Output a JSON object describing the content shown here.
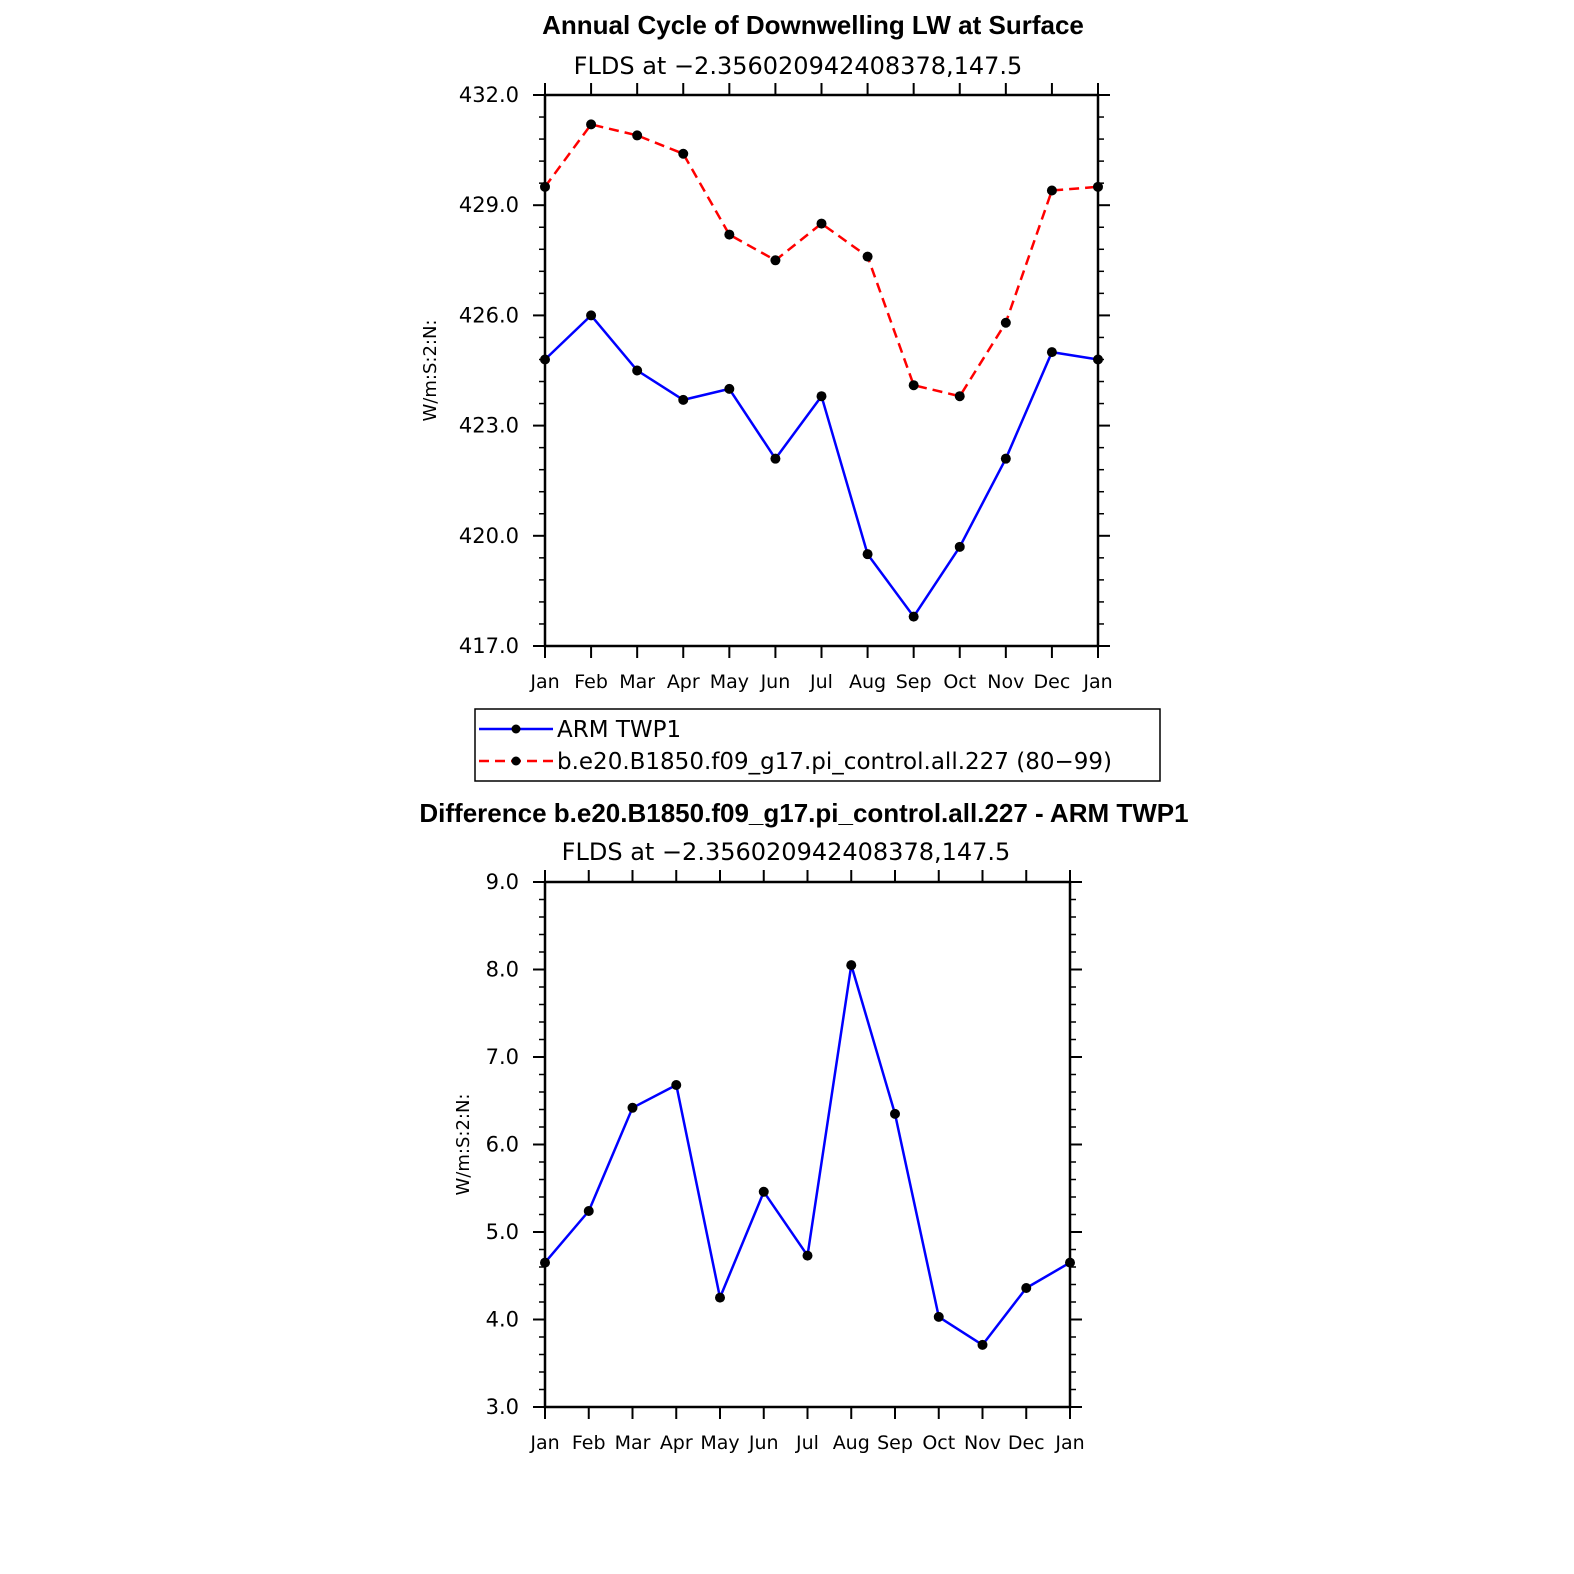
{
  "chart_data": [
    {
      "type": "line",
      "title": "Annual Cycle of Downwelling LW at Surface",
      "subtitle": "FLDS at −2.356020942408378,147.5",
      "ylabel": "W/m:S:2:N:",
      "ylim": [
        417.0,
        432.0
      ],
      "yticks": [
        "417.0",
        "420.0",
        "423.0",
        "426.0",
        "429.0",
        "432.0"
      ],
      "categories": [
        "Jan",
        "Feb",
        "Mar",
        "Apr",
        "May",
        "Jun",
        "Jul",
        "Aug",
        "Sep",
        "Oct",
        "Nov",
        "Dec",
        "Jan"
      ],
      "legend": {
        "placement": "bottom"
      },
      "series": [
        {
          "name": "ARM TWP1",
          "color": "#0000ff",
          "style": "solid",
          "values": [
            424.8,
            426.0,
            424.5,
            423.7,
            424.0,
            422.1,
            423.8,
            419.5,
            417.8,
            419.7,
            422.1,
            425.0,
            424.8
          ]
        },
        {
          "name": "b.e20.B1850.f09_g17.pi_control.all.227 (80−99)",
          "color": "#ff0000",
          "style": "dashed",
          "values": [
            429.5,
            431.2,
            430.9,
            430.4,
            428.2,
            427.5,
            428.5,
            427.6,
            424.1,
            423.8,
            425.8,
            429.4,
            429.5
          ]
        }
      ]
    },
    {
      "type": "line",
      "title": "Difference b.e20.B1850.f09_g17.pi_control.all.227 - ARM TWP1",
      "subtitle": "FLDS at −2.356020942408378,147.5",
      "ylabel": "W/m:S:2:N:",
      "ylim": [
        3.0,
        9.0
      ],
      "yticks": [
        "3.0",
        "4.0",
        "5.0",
        "6.0",
        "7.0",
        "8.0",
        "9.0"
      ],
      "categories": [
        "Jan",
        "Feb",
        "Mar",
        "Apr",
        "May",
        "Jun",
        "Jul",
        "Aug",
        "Sep",
        "Oct",
        "Nov",
        "Dec",
        "Jan"
      ],
      "series": [
        {
          "color": "#0000ff",
          "style": "solid",
          "values": [
            4.65,
            5.24,
            6.42,
            6.68,
            4.25,
            5.46,
            4.73,
            8.05,
            6.35,
            4.03,
            3.71,
            4.36,
            4.65
          ]
        }
      ]
    }
  ]
}
